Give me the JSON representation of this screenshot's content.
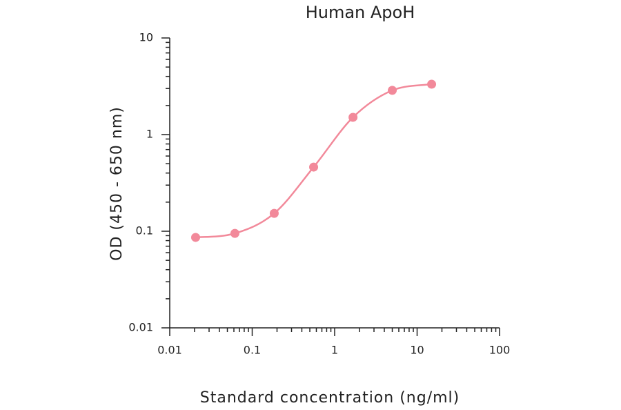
{
  "chart_data": {
    "type": "scatter",
    "title": "Human ApoH",
    "x_label": "Standard concentration (ng/ml)",
    "y_label": "OD (450 - 650 nm)",
    "x_log": true,
    "y_log": true,
    "minor_ticks": true,
    "xlim": [
      0.01,
      100
    ],
    "xticks": [
      0.01,
      0.1,
      1,
      10,
      100
    ],
    "ylim": [
      0.01,
      10
    ],
    "yticks": [
      0.01,
      0.1,
      1,
      10
    ],
    "series": [
      {
        "name": "Human ApoH",
        "color": "#f2899a",
        "x": [
          0.0206,
          0.0617,
          0.185,
          0.556,
          1.67,
          5,
          15
        ],
        "values": [
          0.0863,
          0.095,
          0.153,
          0.461,
          1.51,
          2.87,
          3.32
        ]
      }
    ]
  }
}
